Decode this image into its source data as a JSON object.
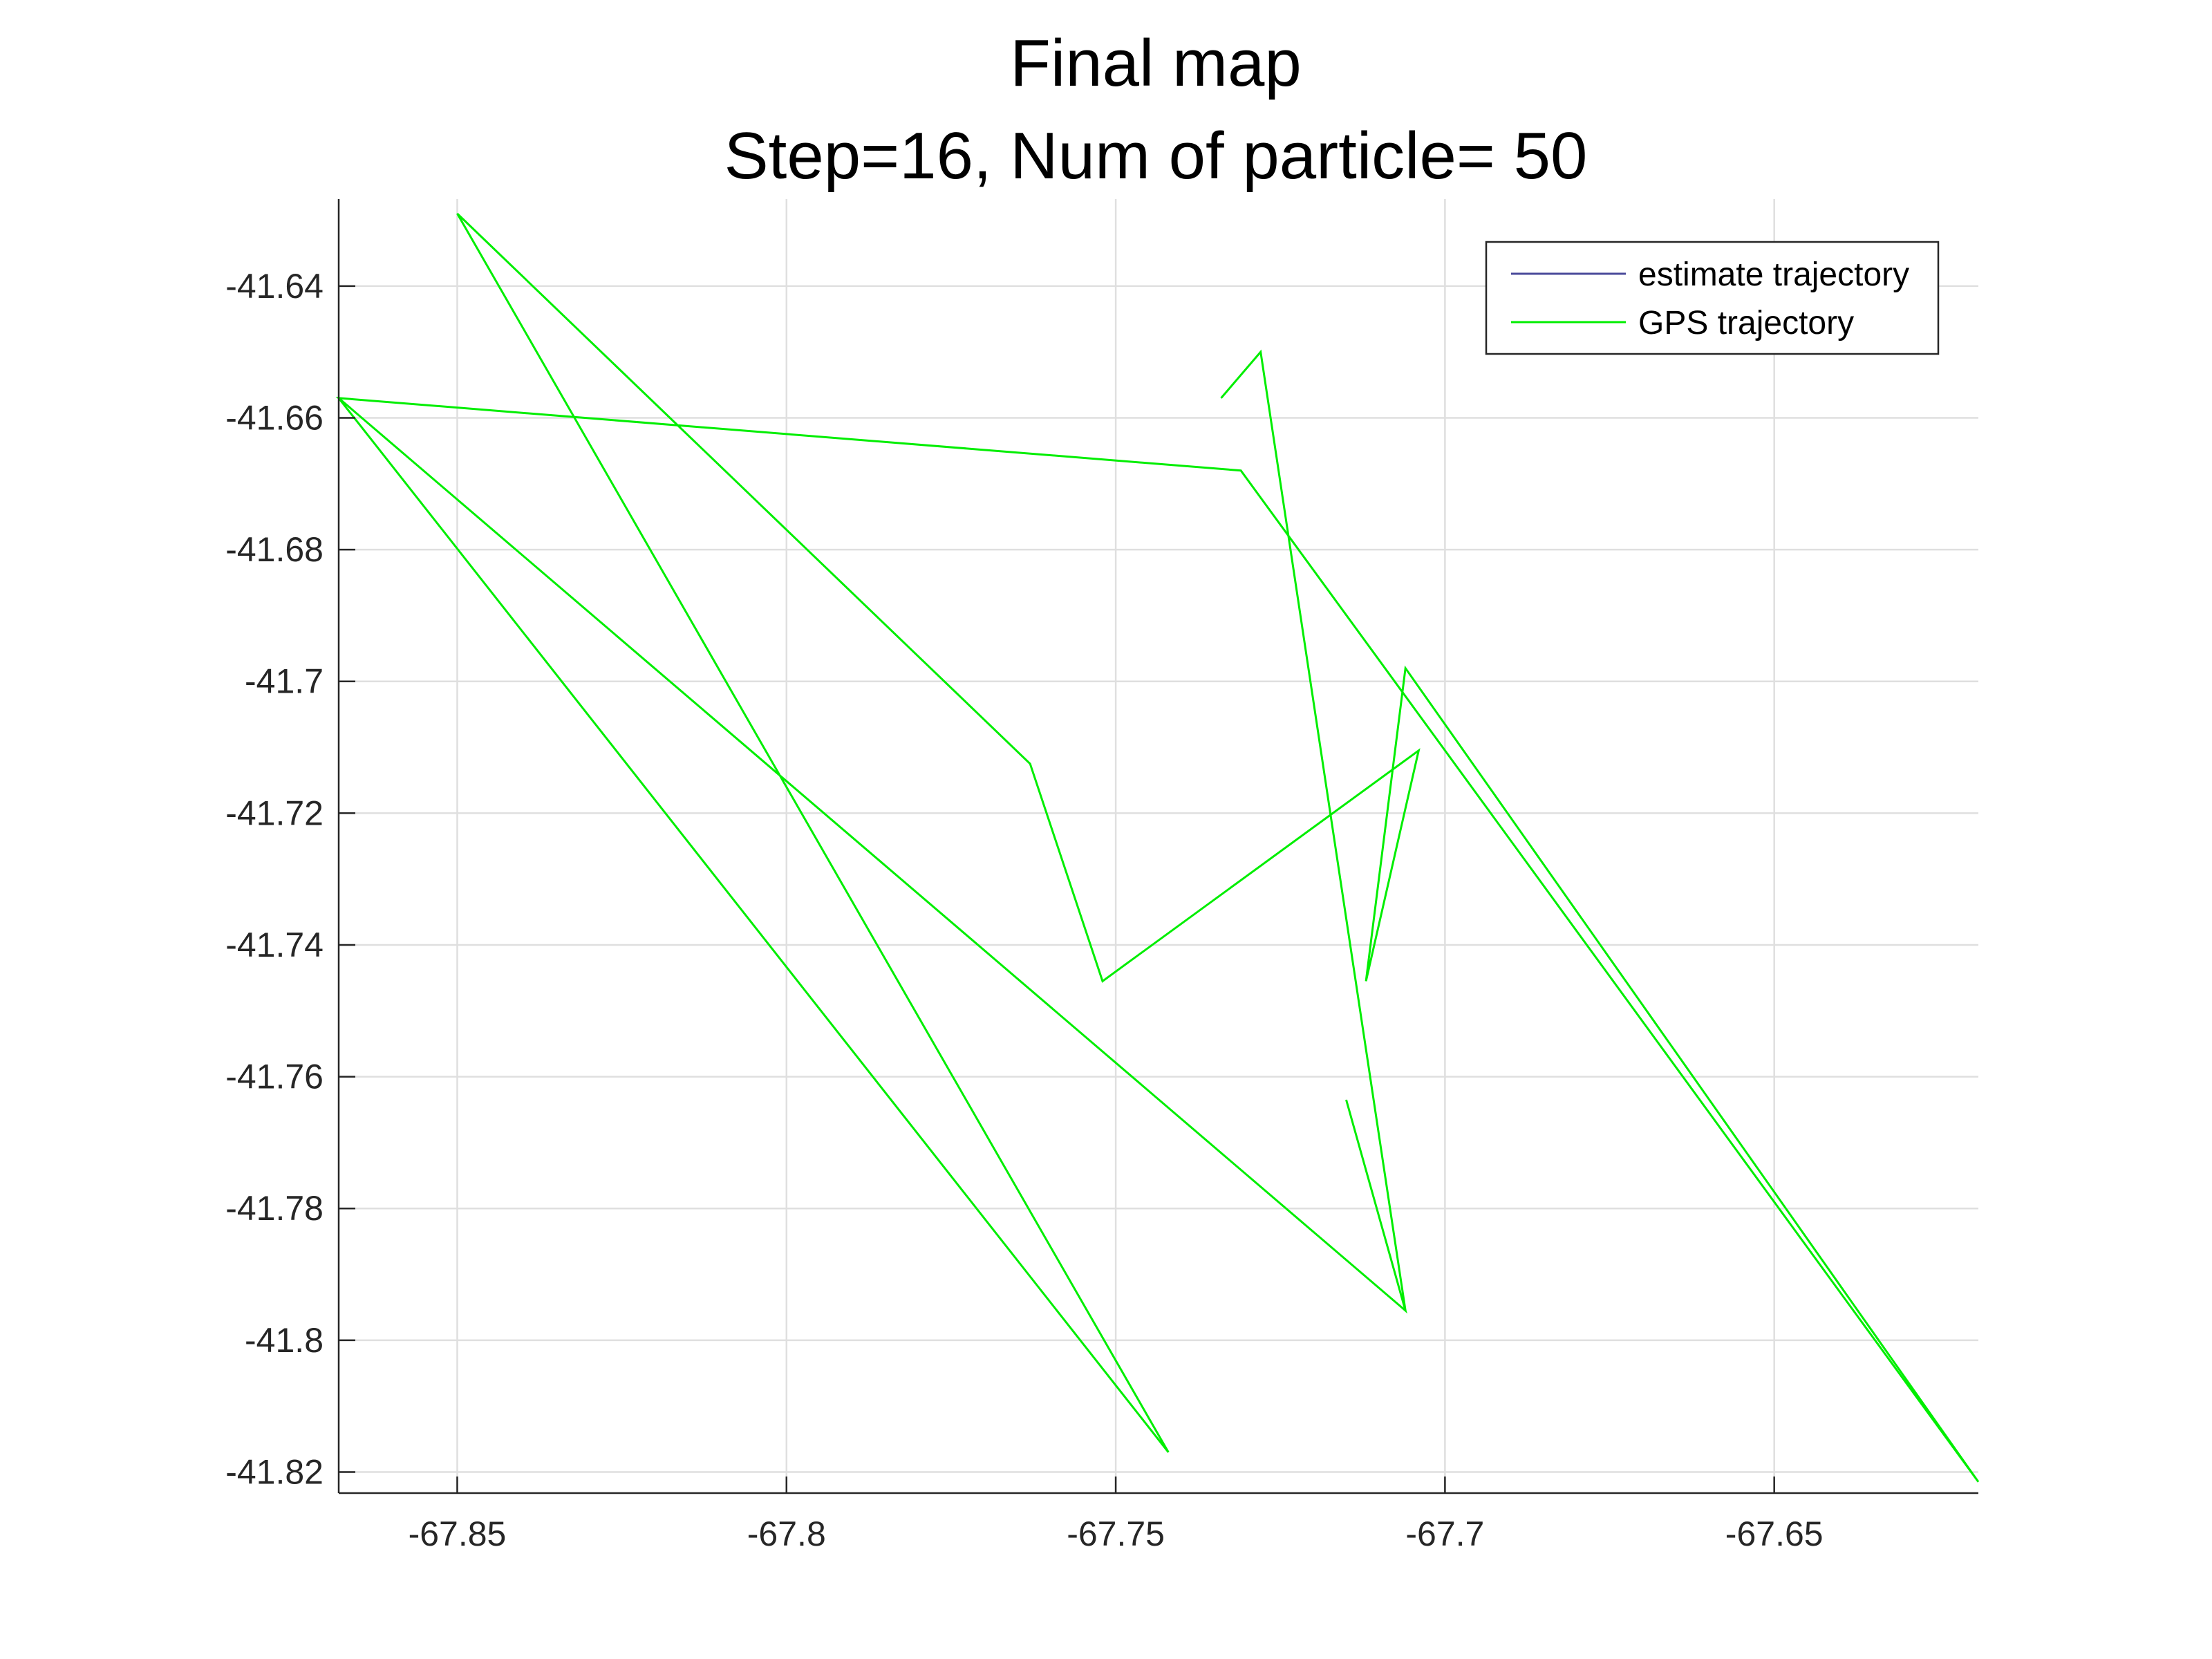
{
  "chart_data": {
    "type": "line",
    "title": "Final map",
    "subtitle": "Step=16, Num of particle= 50",
    "xlabel": "",
    "ylabel": "",
    "xlim": [
      -67.868,
      -67.619
    ],
    "ylim": [
      -41.8232,
      -41.6268
    ],
    "x_ticks": [
      -67.85,
      -67.8,
      -67.75,
      -67.7,
      -67.65
    ],
    "x_tick_labels": [
      "-67.85",
      "-67.8",
      "-67.75",
      "-67.7",
      "-67.65"
    ],
    "y_ticks": [
      -41.64,
      -41.66,
      -41.68,
      -41.7,
      -41.72,
      -41.74,
      -41.76,
      -41.78,
      -41.8,
      -41.82
    ],
    "y_tick_labels": [
      "-41.64",
      "-41.66",
      "-41.68",
      "-41.7",
      "-41.72",
      "-41.74",
      "-41.76",
      "-41.78",
      "-41.8",
      "-41.82"
    ],
    "grid": true,
    "legend_position": "top-right",
    "series": [
      {
        "name": "estimate trajectory",
        "color": "#4a4a9a",
        "x": [],
        "y": []
      },
      {
        "name": "GPS trajectory",
        "color": "#00ee00",
        "x": [
          -67.734,
          -67.728,
          -67.706,
          -67.868,
          -67.742,
          -67.85,
          -67.763,
          -67.752,
          -67.704,
          -67.712,
          -67.706,
          -67.619,
          -67.731,
          -67.868,
          -67.706,
          -67.715
        ],
        "y": [
          -41.657,
          -41.65,
          -41.7955,
          -41.657,
          -41.817,
          -41.629,
          -41.7125,
          -41.7455,
          -41.7105,
          -41.7455,
          -41.698,
          -41.8215,
          -41.668,
          -41.657,
          -41.7955,
          -41.7635
        ]
      }
    ]
  }
}
